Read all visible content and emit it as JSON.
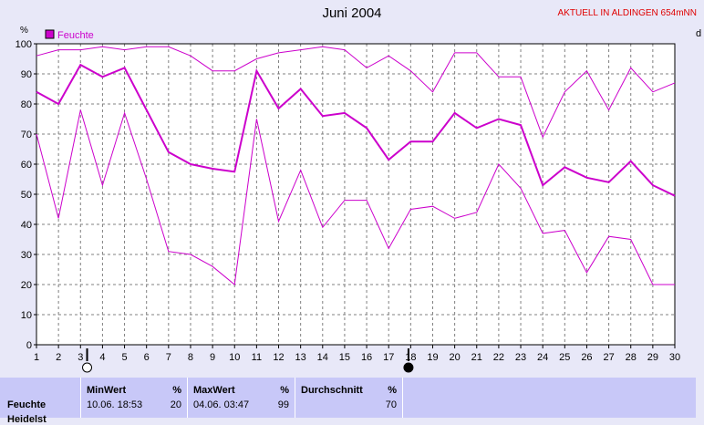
{
  "header": {
    "title": "Juni 2004",
    "status": "AKTUELL IN ALDINGEN 654mNN",
    "right_cut_label": "d"
  },
  "chart_data": {
    "type": "line",
    "title": "Juni 2004",
    "ylabel": "%",
    "x": [
      1,
      2,
      3,
      4,
      5,
      6,
      7,
      8,
      9,
      10,
      11,
      12,
      13,
      14,
      15,
      16,
      17,
      18,
      19,
      20,
      21,
      22,
      23,
      24,
      25,
      26,
      27,
      28,
      29,
      30
    ],
    "ylim": [
      0,
      100
    ],
    "yticks": [
      0,
      10,
      20,
      30,
      40,
      50,
      60,
      70,
      80,
      90,
      100
    ],
    "grid": true,
    "legend": {
      "placement": "top-left",
      "entries": [
        "Feuchte"
      ]
    },
    "colors": {
      "series": "#cc00cc",
      "plot_bg": "#ffffff",
      "grid": "#808080",
      "page_bg": "#e8e8f8",
      "footer_bg": "#c8c8f8",
      "status": "#e00000"
    },
    "series": [
      {
        "name": "Feuchte",
        "role": "avg",
        "width": 2,
        "values": [
          84,
          80,
          93,
          89,
          92,
          78,
          64,
          60,
          58.5,
          57.5,
          91,
          78.5,
          85,
          76,
          77,
          72,
          61.5,
          67.5,
          67.5,
          77,
          72,
          75,
          73,
          53,
          59,
          55.5,
          54,
          61,
          53,
          49.5
        ]
      },
      {
        "role": "max",
        "width": 1,
        "values": [
          96,
          98,
          98,
          99,
          98,
          99,
          99,
          96,
          91,
          91,
          95,
          97,
          98,
          99,
          98,
          92,
          96,
          91,
          84,
          97,
          97,
          89,
          89,
          69,
          84,
          91,
          78,
          92,
          84,
          87
        ]
      },
      {
        "role": "min",
        "width": 1,
        "values": [
          70,
          42,
          78,
          53,
          77,
          55,
          31,
          30,
          26,
          20,
          75,
          41,
          58,
          39,
          48,
          48,
          32,
          45,
          46,
          42,
          44,
          60,
          52,
          37,
          38,
          24,
          36,
          35,
          20,
          20
        ]
      }
    ],
    "markers": [
      {
        "day": 3.3,
        "symbol": "open-circle"
      },
      {
        "day": 17.9,
        "symbol": "filled-circle"
      }
    ]
  },
  "footer": {
    "row_label_1": "Feuchte",
    "row_label_2": "Heidelst",
    "min": {
      "header": "MinWert",
      "unit": "%",
      "time": "10.06.  18:53",
      "value": "20"
    },
    "max": {
      "header": "MaxWert",
      "unit": "%",
      "time": "04.06.  03:47",
      "value": "99"
    },
    "avg": {
      "header": "Durchschnitt",
      "unit": "%",
      "value": "70"
    }
  }
}
